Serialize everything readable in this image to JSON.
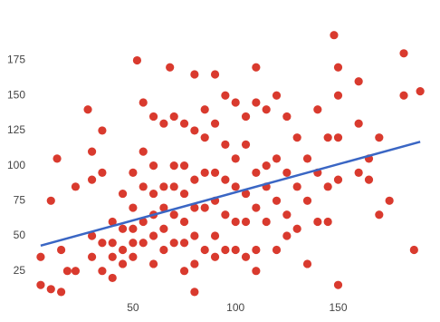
{
  "chart_data": {
    "type": "scatter",
    "xlim": [
      -6,
      197
    ],
    "ylim": [
      8,
      218
    ],
    "xticks": [
      50,
      100,
      150
    ],
    "yticks": [
      25,
      50,
      75,
      100,
      125,
      150,
      175
    ],
    "series": [
      {
        "color": "#d93a2e",
        "x": [
          30,
          30,
          30,
          30,
          35,
          35,
          35,
          35,
          40,
          40,
          40,
          40,
          45,
          45,
          45,
          45,
          50,
          50,
          50,
          50,
          50,
          55,
          55,
          55,
          55,
          55,
          60,
          60,
          60,
          60,
          60,
          60,
          65,
          65,
          65,
          65,
          65,
          70,
          70,
          70,
          70,
          70,
          75,
          75,
          75,
          75,
          75,
          75,
          80,
          80,
          80,
          80,
          80,
          85,
          85,
          85,
          85,
          85,
          90,
          90,
          90,
          90,
          90,
          95,
          95,
          95,
          95,
          95,
          100,
          100,
          100,
          100,
          100,
          105,
          105,
          105,
          105,
          105,
          110,
          110,
          110,
          110,
          110,
          115,
          115,
          115,
          115,
          120,
          120,
          120,
          120,
          125,
          125,
          125,
          125,
          130,
          130,
          130,
          135,
          135,
          135,
          140,
          140,
          140,
          145,
          145,
          145,
          150,
          150,
          160,
          160,
          165,
          165,
          148,
          52,
          68,
          80,
          90,
          110,
          150,
          150,
          160,
          182,
          182,
          190,
          5,
          5,
          10,
          15,
          80,
          150,
          187,
          170,
          175,
          170,
          10,
          13,
          28,
          22,
          15,
          18,
          22
        ],
        "values": [
          110,
          90,
          50,
          35,
          125,
          95,
          45,
          25,
          60,
          45,
          35,
          20,
          80,
          55,
          40,
          30,
          95,
          70,
          55,
          45,
          35,
          145,
          110,
          85,
          60,
          45,
          135,
          100,
          80,
          65,
          50,
          30,
          130,
          85,
          70,
          55,
          40,
          135,
          100,
          85,
          65,
          45,
          130,
          100,
          80,
          60,
          45,
          25,
          125,
          90,
          70,
          50,
          30,
          140,
          120,
          95,
          70,
          40,
          130,
          95,
          75,
          50,
          35,
          150,
          115,
          90,
          65,
          40,
          145,
          105,
          85,
          60,
          40,
          135,
          115,
          80,
          60,
          35,
          145,
          95,
          70,
          40,
          25,
          140,
          100,
          85,
          60,
          150,
          105,
          75,
          40,
          135,
          95,
          65,
          50,
          120,
          85,
          55,
          105,
          75,
          30,
          140,
          95,
          60,
          120,
          85,
          60,
          120,
          90,
          130,
          95,
          105,
          90,
          193,
          175,
          170,
          165,
          165,
          170,
          150,
          170,
          160,
          180,
          150,
          153,
          35,
          15,
          12,
          10,
          10,
          15,
          40,
          65,
          75,
          120,
          75,
          105,
          140,
          85,
          40,
          25,
          25
        ]
      }
    ],
    "trendline": {
      "color": "#3a66c4",
      "x": [
        5,
        190
      ],
      "values": [
        43,
        117
      ]
    }
  }
}
